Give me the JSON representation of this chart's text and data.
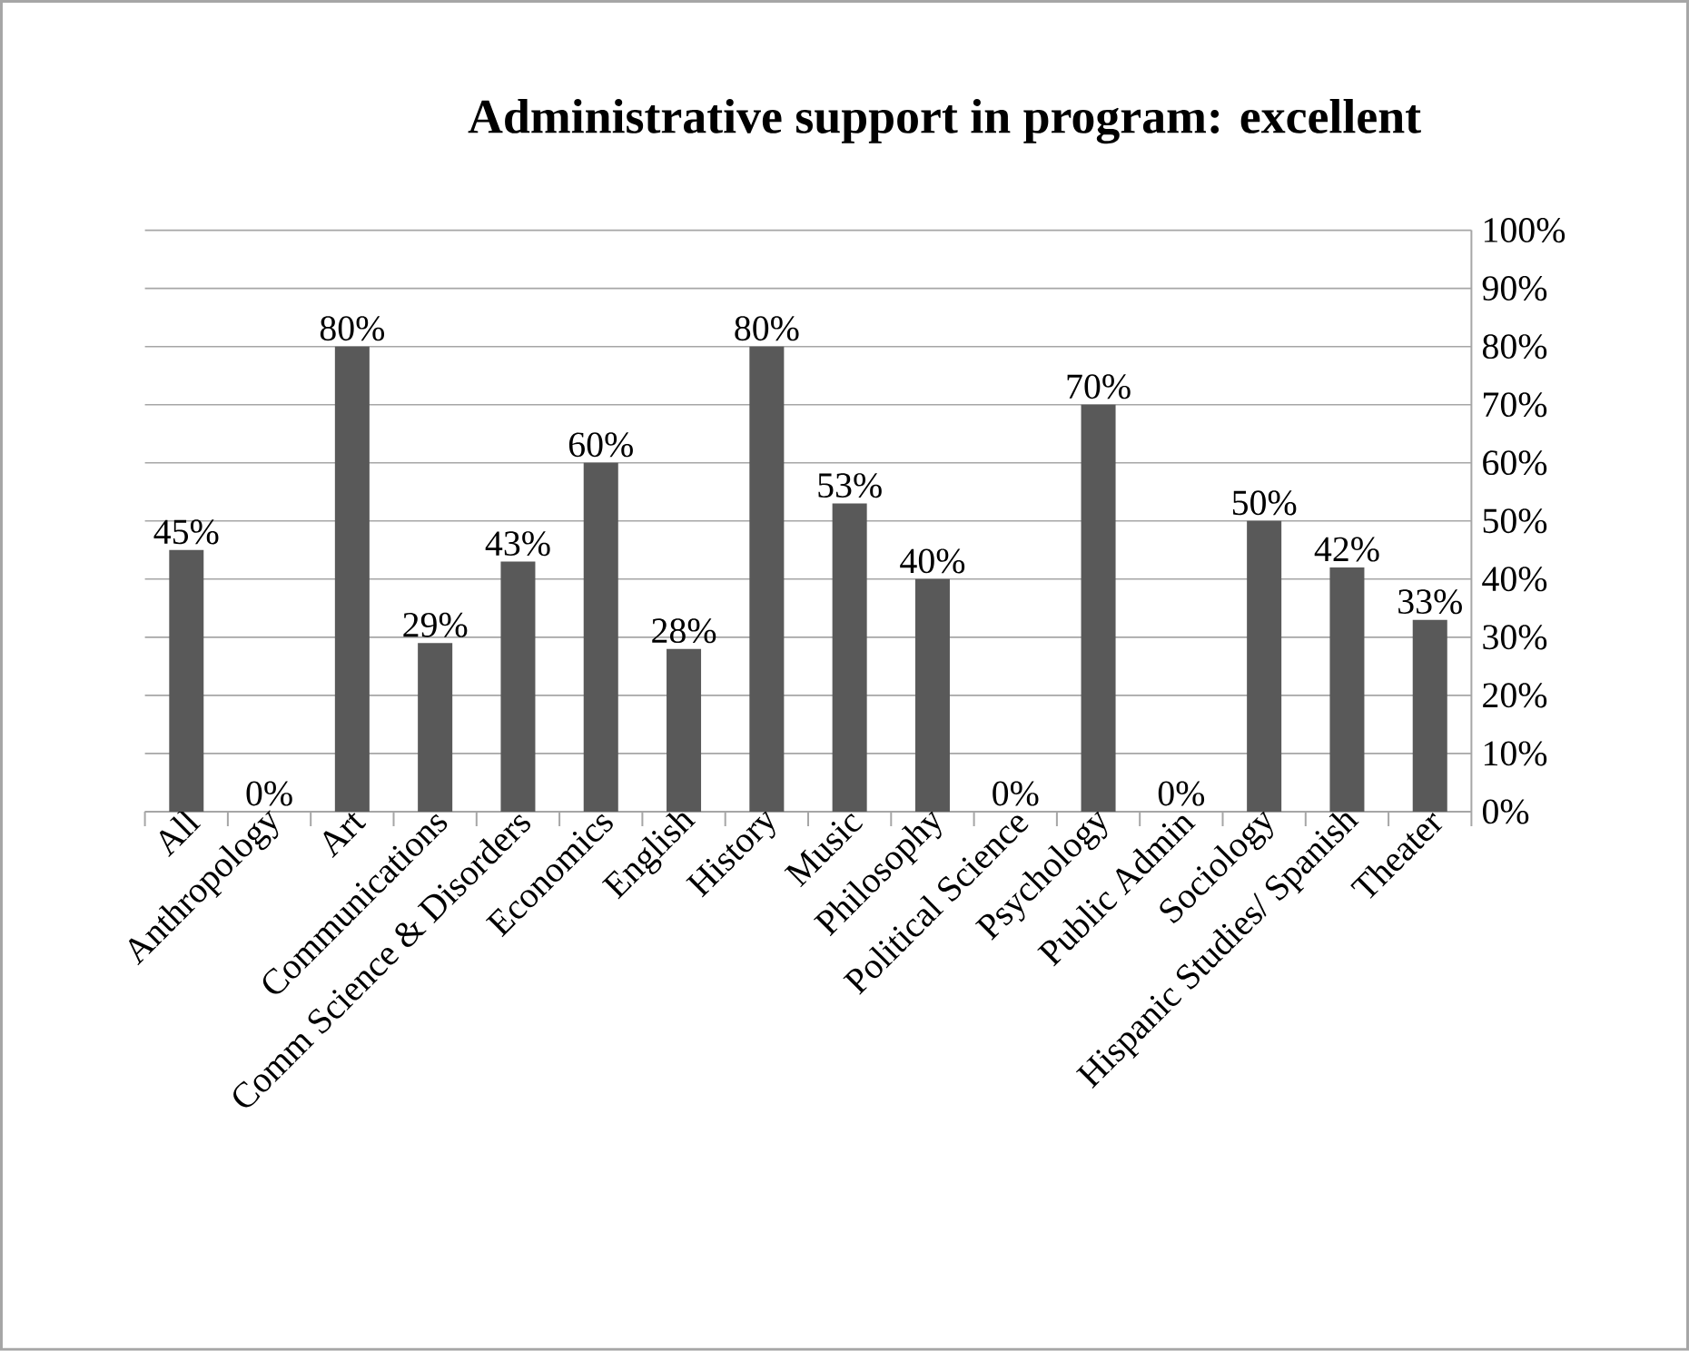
{
  "chart_data": {
    "type": "bar",
    "title": "Administrative support in program: excellent",
    "categories": [
      "All",
      "Anthropology",
      "Art",
      "Communications",
      "Comm Science & Disorders",
      "Economics",
      "English",
      "History",
      "Music",
      "Philosophy",
      "Political Science",
      "Psychology",
      "Public Admin",
      "Sociology",
      "Hispanic Studies/ Spanish",
      "Theater"
    ],
    "values": [
      45,
      0,
      80,
      29,
      43,
      60,
      28,
      80,
      53,
      40,
      0,
      70,
      0,
      50,
      42,
      33
    ],
    "value_labels": [
      "45%",
      "0%",
      "80%",
      "29%",
      "43%",
      "60%",
      "28%",
      "80%",
      "53%",
      "40%",
      "0%",
      "70%",
      "0%",
      "50%",
      "42%",
      "33%"
    ],
    "color": "#595959",
    "ylim": [
      0,
      100
    ],
    "yticks": [
      {
        "value": 0,
        "label": "0%"
      },
      {
        "value": 10,
        "label": "10%"
      },
      {
        "value": 20,
        "label": "20%"
      },
      {
        "value": 30,
        "label": "30%"
      },
      {
        "value": 40,
        "label": "40%"
      },
      {
        "value": 50,
        "label": "50%"
      },
      {
        "value": 60,
        "label": "60%"
      },
      {
        "value": 70,
        "label": "70%"
      },
      {
        "value": 80,
        "label": "80%"
      },
      {
        "value": 90,
        "label": "90%"
      },
      {
        "value": 100,
        "label": "100%"
      }
    ],
    "grid": "y"
  }
}
